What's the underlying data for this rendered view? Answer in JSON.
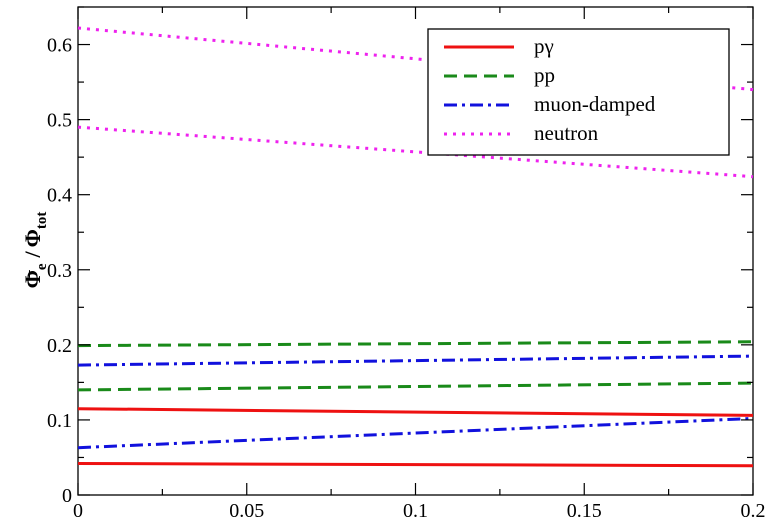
{
  "chart_data": {
    "type": "line",
    "xlim": [
      0,
      0.2
    ],
    "ylim": [
      0,
      0.65
    ],
    "grid": false,
    "legend_position": "top-right",
    "ylabel": {
      "main": "Φ",
      "sub": "e",
      "over": "–",
      "divider": "/",
      "main2": "Φ",
      "sub2": "tot"
    },
    "xticks": [
      {
        "value": 0,
        "label": "0"
      },
      {
        "value": 0.05,
        "label": "0.05"
      },
      {
        "value": 0.1,
        "label": "0.1"
      },
      {
        "value": 0.15,
        "label": "0.15"
      },
      {
        "value": 0.2,
        "label": "0.2"
      }
    ],
    "yticks": [
      {
        "value": 0,
        "label": "0"
      },
      {
        "value": 0.1,
        "label": "0.1"
      },
      {
        "value": 0.2,
        "label": "0.2"
      },
      {
        "value": 0.3,
        "label": "0.3"
      },
      {
        "value": 0.4,
        "label": "0.4"
      },
      {
        "value": 0.5,
        "label": "0.5"
      },
      {
        "value": 0.6,
        "label": "0.6"
      }
    ],
    "series": [
      {
        "name": "pγ",
        "color": "#ee1111",
        "dash": "solid",
        "in_legend": true,
        "x": [
          0,
          0.2
        ],
        "y": [
          0.115,
          0.106
        ]
      },
      {
        "name": "pγ",
        "color": "#ee1111",
        "dash": "solid",
        "in_legend": false,
        "x": [
          0,
          0.2
        ],
        "y": [
          0.042,
          0.039
        ]
      },
      {
        "name": "pp",
        "color": "#1a8a1a",
        "dash": "dashed",
        "in_legend": true,
        "x": [
          0,
          0.2
        ],
        "y": [
          0.199,
          0.204
        ]
      },
      {
        "name": "pp",
        "color": "#1a8a1a",
        "dash": "dashed",
        "in_legend": false,
        "x": [
          0,
          0.2
        ],
        "y": [
          0.14,
          0.149
        ]
      },
      {
        "name": "muon-damped",
        "color": "#1111dd",
        "dash": "dashdot",
        "in_legend": true,
        "x": [
          0,
          0.2
        ],
        "y": [
          0.173,
          0.185
        ]
      },
      {
        "name": "muon-damped",
        "color": "#1111dd",
        "dash": "dashdot",
        "in_legend": false,
        "x": [
          0,
          0.2
        ],
        "y": [
          0.063,
          0.102
        ]
      },
      {
        "name": "neutron",
        "color": "#ee22ee",
        "dash": "dotted",
        "in_legend": true,
        "x": [
          0,
          0.2
        ],
        "y": [
          0.622,
          0.54
        ]
      },
      {
        "name": "neutron",
        "color": "#ee22ee",
        "dash": "dotted",
        "in_legend": false,
        "x": [
          0,
          0.2
        ],
        "y": [
          0.49,
          0.424
        ]
      }
    ]
  }
}
